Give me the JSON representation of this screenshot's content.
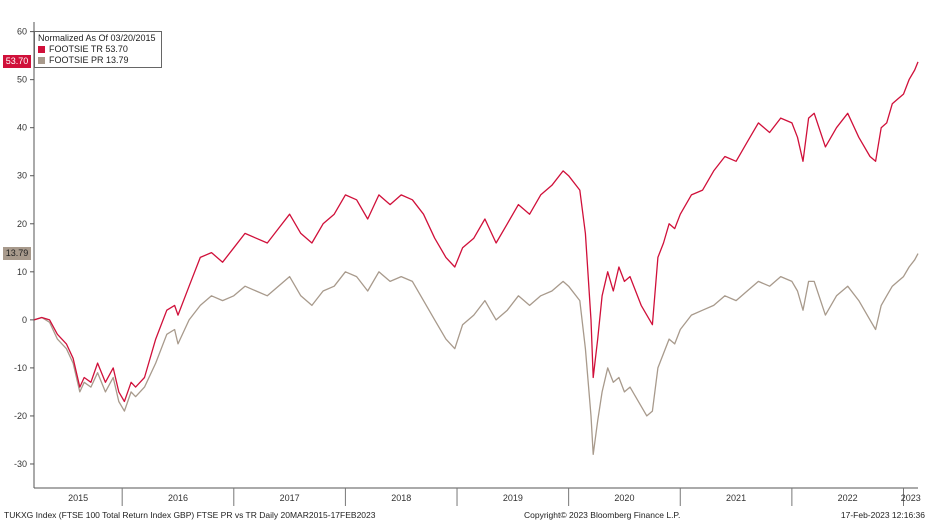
{
  "chart_data": {
    "type": "line",
    "legend": {
      "title": "Normalized As Of 03/20/2015",
      "placement": "top-left"
    },
    "ylim": [
      -35,
      62
    ],
    "yticks": [
      60,
      50,
      40,
      30,
      20,
      10,
      0,
      -10,
      -20,
      -30
    ],
    "xlim": [
      2015.21,
      2023.13
    ],
    "xticks": [
      "2015",
      "2016",
      "2017",
      "2018",
      "2019",
      "2020",
      "2021",
      "2022",
      "2023"
    ],
    "series": [
      {
        "name": "FOOTSIE TR 53.70",
        "color": "#d0103a",
        "last_label": "53.70",
        "x": [
          2015.21,
          2015.28,
          2015.35,
          2015.42,
          2015.5,
          2015.56,
          2015.62,
          2015.66,
          2015.72,
          2015.78,
          2015.85,
          2015.92,
          2015.97,
          2016.02,
          2016.08,
          2016.12,
          2016.2,
          2016.3,
          2016.4,
          2016.47,
          2016.5,
          2016.6,
          2016.7,
          2016.8,
          2016.9,
          2017.0,
          2017.1,
          2017.2,
          2017.3,
          2017.4,
          2017.5,
          2017.6,
          2017.7,
          2017.8,
          2017.9,
          2018.0,
          2018.1,
          2018.2,
          2018.3,
          2018.4,
          2018.5,
          2018.6,
          2018.7,
          2018.8,
          2018.9,
          2018.98,
          2019.05,
          2019.15,
          2019.25,
          2019.35,
          2019.45,
          2019.55,
          2019.65,
          2019.75,
          2019.85,
          2019.95,
          2020.0,
          2020.1,
          2020.15,
          2020.2,
          2020.22,
          2020.26,
          2020.3,
          2020.35,
          2020.4,
          2020.45,
          2020.5,
          2020.55,
          2020.6,
          2020.65,
          2020.7,
          2020.75,
          2020.8,
          2020.85,
          2020.9,
          2020.95,
          2021.0,
          2021.1,
          2021.2,
          2021.3,
          2021.4,
          2021.5,
          2021.6,
          2021.7,
          2021.8,
          2021.9,
          2022.0,
          2022.05,
          2022.1,
          2022.15,
          2022.2,
          2022.3,
          2022.4,
          2022.5,
          2022.6,
          2022.7,
          2022.75,
          2022.8,
          2022.85,
          2022.9,
          2022.95,
          2023.0,
          2023.05,
          2023.1,
          2023.13
        ],
        "values": [
          0,
          0.5,
          0,
          -3,
          -5,
          -8,
          -14,
          -12,
          -13,
          -9,
          -13,
          -10,
          -15,
          -17,
          -13,
          -14,
          -12,
          -4,
          2,
          3,
          1,
          7,
          13,
          14,
          12,
          15,
          18,
          17,
          16,
          19,
          22,
          18,
          16,
          20,
          22,
          26,
          25,
          21,
          26,
          24,
          26,
          25,
          22,
          17,
          13,
          11,
          15,
          17,
          21,
          16,
          20,
          24,
          22,
          26,
          28,
          31,
          30,
          27,
          18,
          0,
          -12,
          -4,
          5,
          10,
          6,
          11,
          8,
          9,
          6,
          3,
          1,
          -1,
          13,
          16,
          20,
          19,
          22,
          26,
          27,
          31,
          34,
          33,
          37,
          41,
          39,
          42,
          41,
          38,
          33,
          42,
          43,
          36,
          40,
          43,
          38,
          34,
          33,
          40,
          41,
          45,
          46,
          47,
          50,
          52,
          53.7
        ]
      },
      {
        "name": "FOOTSIE PR 13.79",
        "color": "#a89a8c",
        "last_label": "13.79",
        "x": [
          2015.21,
          2015.28,
          2015.35,
          2015.42,
          2015.5,
          2015.56,
          2015.62,
          2015.66,
          2015.72,
          2015.78,
          2015.85,
          2015.92,
          2015.97,
          2016.02,
          2016.08,
          2016.12,
          2016.2,
          2016.3,
          2016.4,
          2016.47,
          2016.5,
          2016.6,
          2016.7,
          2016.8,
          2016.9,
          2017.0,
          2017.1,
          2017.2,
          2017.3,
          2017.4,
          2017.5,
          2017.6,
          2017.7,
          2017.8,
          2017.9,
          2018.0,
          2018.1,
          2018.2,
          2018.3,
          2018.4,
          2018.5,
          2018.6,
          2018.7,
          2018.8,
          2018.9,
          2018.98,
          2019.05,
          2019.15,
          2019.25,
          2019.35,
          2019.45,
          2019.55,
          2019.65,
          2019.75,
          2019.85,
          2019.95,
          2020.0,
          2020.1,
          2020.15,
          2020.2,
          2020.22,
          2020.26,
          2020.3,
          2020.35,
          2020.4,
          2020.45,
          2020.5,
          2020.55,
          2020.6,
          2020.65,
          2020.7,
          2020.75,
          2020.8,
          2020.85,
          2020.9,
          2020.95,
          2021.0,
          2021.1,
          2021.2,
          2021.3,
          2021.4,
          2021.5,
          2021.6,
          2021.7,
          2021.8,
          2021.9,
          2022.0,
          2022.05,
          2022.1,
          2022.15,
          2022.2,
          2022.3,
          2022.4,
          2022.5,
          2022.6,
          2022.7,
          2022.75,
          2022.8,
          2022.85,
          2022.9,
          2022.95,
          2023.0,
          2023.05,
          2023.1,
          2023.13
        ],
        "values": [
          0,
          0.5,
          -0.5,
          -4,
          -6,
          -9,
          -15,
          -13,
          -14,
          -11,
          -15,
          -12,
          -17,
          -19,
          -15,
          -16,
          -14,
          -9,
          -3,
          -2,
          -5,
          0,
          3,
          5,
          4,
          5,
          7,
          6,
          5,
          7,
          9,
          5,
          3,
          6,
          7,
          10,
          9,
          6,
          10,
          8,
          9,
          8,
          4,
          0,
          -4,
          -6,
          -1,
          1,
          4,
          0,
          2,
          5,
          3,
          5,
          6,
          8,
          7,
          4,
          -6,
          -20,
          -28,
          -21,
          -15,
          -10,
          -13,
          -12,
          -15,
          -14,
          -16,
          -18,
          -20,
          -19,
          -10,
          -7,
          -4,
          -5,
          -2,
          1,
          2,
          3,
          5,
          4,
          6,
          8,
          7,
          9,
          8,
          6,
          2,
          8,
          8,
          1,
          5,
          7,
          4,
          0,
          -2,
          3,
          5,
          7,
          8,
          9,
          11,
          12.5,
          13.79
        ]
      }
    ]
  },
  "footer": {
    "left": "TUKXG Index (FTSE 100 Total Return Index GBP) FTSE PR vs TR  Daily 20MAR2015-17FEB2023",
    "center": "Copyright© 2023 Bloomberg Finance L.P.",
    "right": "17-Feb-2023 12:16:36"
  }
}
